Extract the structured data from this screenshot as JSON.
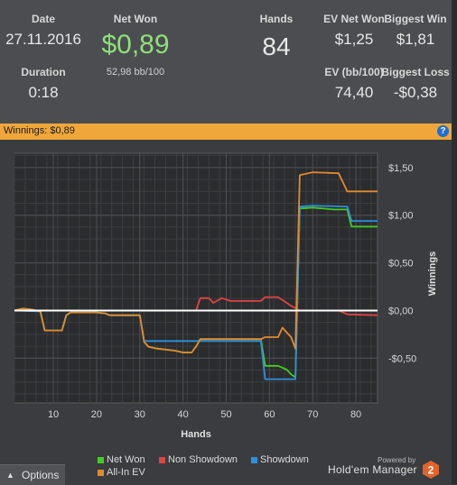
{
  "stats": {
    "date_label": "Date",
    "date_value": "27.11.2016",
    "duration_label": "Duration",
    "duration_value": "0:18",
    "netwon_label": "Net Won",
    "netwon_value": "$0,89",
    "netwon_sub": "52,98 bb/100",
    "hands_label": "Hands",
    "hands_value": "84",
    "evnet_label": "EV Net Won",
    "evnet_value": "$1,25",
    "evbb_label": "EV (bb/100)",
    "evbb_value": "74,40",
    "bigwin_label": "Biggest Win",
    "bigwin_value": "$1,81",
    "bigloss_label": "Biggest Loss",
    "bigloss_value": "-$0,38"
  },
  "banner": {
    "title": "Winnings: $0,89",
    "help_glyph": "?"
  },
  "colors": {
    "net_won": "#44cc22",
    "non_showdown": "#dd4444",
    "showdown": "#2f8fdd",
    "allin_ev": "#e08a30",
    "accent": "#f0a73a"
  },
  "chart_data": {
    "type": "line",
    "xlabel": "Hands",
    "ylabel": "Winnings",
    "xlim": [
      1,
      85
    ],
    "ylim": [
      -0.97,
      1.65
    ],
    "x_ticks": [
      10,
      20,
      30,
      40,
      50,
      60,
      70,
      80
    ],
    "y_ticks": [
      {
        "value": 1.5,
        "label": "$1,50"
      },
      {
        "value": 1.0,
        "label": "$1,00"
      },
      {
        "value": 0.5,
        "label": "$0,50"
      },
      {
        "value": 0.0,
        "label": "$0,00"
      },
      {
        "value": -0.5,
        "label": "-$0,50"
      }
    ],
    "grid": true,
    "legend_position": "bottom",
    "series": [
      {
        "name": "Net Won",
        "color_key": "net_won",
        "points": [
          [
            1,
            0
          ],
          [
            3,
            0.02
          ],
          [
            5,
            0.01
          ],
          [
            7,
            -0.01
          ],
          [
            8,
            -0.21
          ],
          [
            12,
            -0.21
          ],
          [
            13,
            -0.05
          ],
          [
            14,
            -0.02
          ],
          [
            20,
            -0.02
          ],
          [
            22,
            -0.03
          ],
          [
            23,
            -0.05
          ],
          [
            30,
            -0.05
          ],
          [
            31,
            -0.33
          ],
          [
            32,
            -0.38
          ],
          [
            34,
            -0.4
          ],
          [
            38,
            -0.42
          ],
          [
            40,
            -0.44
          ],
          [
            42,
            -0.44
          ],
          [
            43,
            -0.38
          ],
          [
            44,
            -0.3
          ],
          [
            55,
            -0.3
          ],
          [
            58,
            -0.3
          ],
          [
            59,
            -0.58
          ],
          [
            62,
            -0.58
          ],
          [
            64,
            -0.62
          ],
          [
            65,
            -0.67
          ],
          [
            66,
            -0.7
          ],
          [
            67,
            1.07
          ],
          [
            70,
            1.08
          ],
          [
            75,
            1.06
          ],
          [
            78,
            1.06
          ],
          [
            79,
            0.88
          ],
          [
            85,
            0.88
          ]
        ]
      },
      {
        "name": "Non Showdown",
        "color_key": "non_showdown",
        "points": [
          [
            1,
            0
          ],
          [
            30,
            0
          ],
          [
            40,
            0
          ],
          [
            43,
            0
          ],
          [
            44,
            0.13
          ],
          [
            46,
            0.13
          ],
          [
            47,
            0.08
          ],
          [
            49,
            0.13
          ],
          [
            51,
            0.1
          ],
          [
            54,
            0.1
          ],
          [
            57,
            0.1
          ],
          [
            58,
            0.1
          ],
          [
            59,
            0.14
          ],
          [
            62,
            0.14
          ],
          [
            63,
            0.11
          ],
          [
            65,
            0.05
          ],
          [
            67,
            0.0
          ],
          [
            76,
            0.0
          ],
          [
            78,
            -0.04
          ],
          [
            85,
            -0.05
          ]
        ]
      },
      {
        "name": "Showdown",
        "color_key": "showdown",
        "points": [
          [
            1,
            0
          ],
          [
            7,
            -0.01
          ],
          [
            8,
            -0.21
          ],
          [
            12,
            -0.21
          ],
          [
            13,
            -0.05
          ],
          [
            14,
            -0.02
          ],
          [
            20,
            -0.02
          ],
          [
            22,
            -0.03
          ],
          [
            23,
            -0.05
          ],
          [
            30,
            -0.05
          ],
          [
            31,
            -0.32
          ],
          [
            44,
            -0.32
          ],
          [
            58,
            -0.32
          ],
          [
            59,
            -0.72
          ],
          [
            66,
            -0.72
          ],
          [
            67,
            1.09
          ],
          [
            70,
            1.1
          ],
          [
            78,
            1.09
          ],
          [
            79,
            0.94
          ],
          [
            85,
            0.94
          ]
        ]
      },
      {
        "name": "All-In EV",
        "color_key": "allin_ev",
        "points": [
          [
            1,
            0
          ],
          [
            3,
            0.02
          ],
          [
            5,
            0.01
          ],
          [
            7,
            -0.01
          ],
          [
            8,
            -0.21
          ],
          [
            12,
            -0.21
          ],
          [
            13,
            -0.05
          ],
          [
            14,
            -0.02
          ],
          [
            20,
            -0.02
          ],
          [
            22,
            -0.03
          ],
          [
            23,
            -0.05
          ],
          [
            30,
            -0.05
          ],
          [
            31,
            -0.33
          ],
          [
            32,
            -0.38
          ],
          [
            34,
            -0.4
          ],
          [
            38,
            -0.42
          ],
          [
            40,
            -0.44
          ],
          [
            42,
            -0.44
          ],
          [
            43,
            -0.38
          ],
          [
            44,
            -0.3
          ],
          [
            58,
            -0.3
          ],
          [
            59,
            -0.28
          ],
          [
            62,
            -0.28
          ],
          [
            63,
            -0.18
          ],
          [
            65,
            -0.28
          ],
          [
            66,
            -0.4
          ],
          [
            67,
            1.42
          ],
          [
            70,
            1.45
          ],
          [
            76,
            1.44
          ],
          [
            78,
            1.25
          ],
          [
            85,
            1.25
          ]
        ]
      }
    ],
    "zero_line": true
  },
  "legend": [
    {
      "label": "Net Won",
      "color_key": "net_won"
    },
    {
      "label": "Non Showdown",
      "color_key": "non_showdown"
    },
    {
      "label": "Showdown",
      "color_key": "showdown"
    },
    {
      "label": "All-In EV",
      "color_key": "allin_ev"
    }
  ],
  "footer": {
    "options_label": "Options",
    "powered_by": "Powered by",
    "brand": "Hold'em Manager",
    "brand_badge": "2"
  }
}
